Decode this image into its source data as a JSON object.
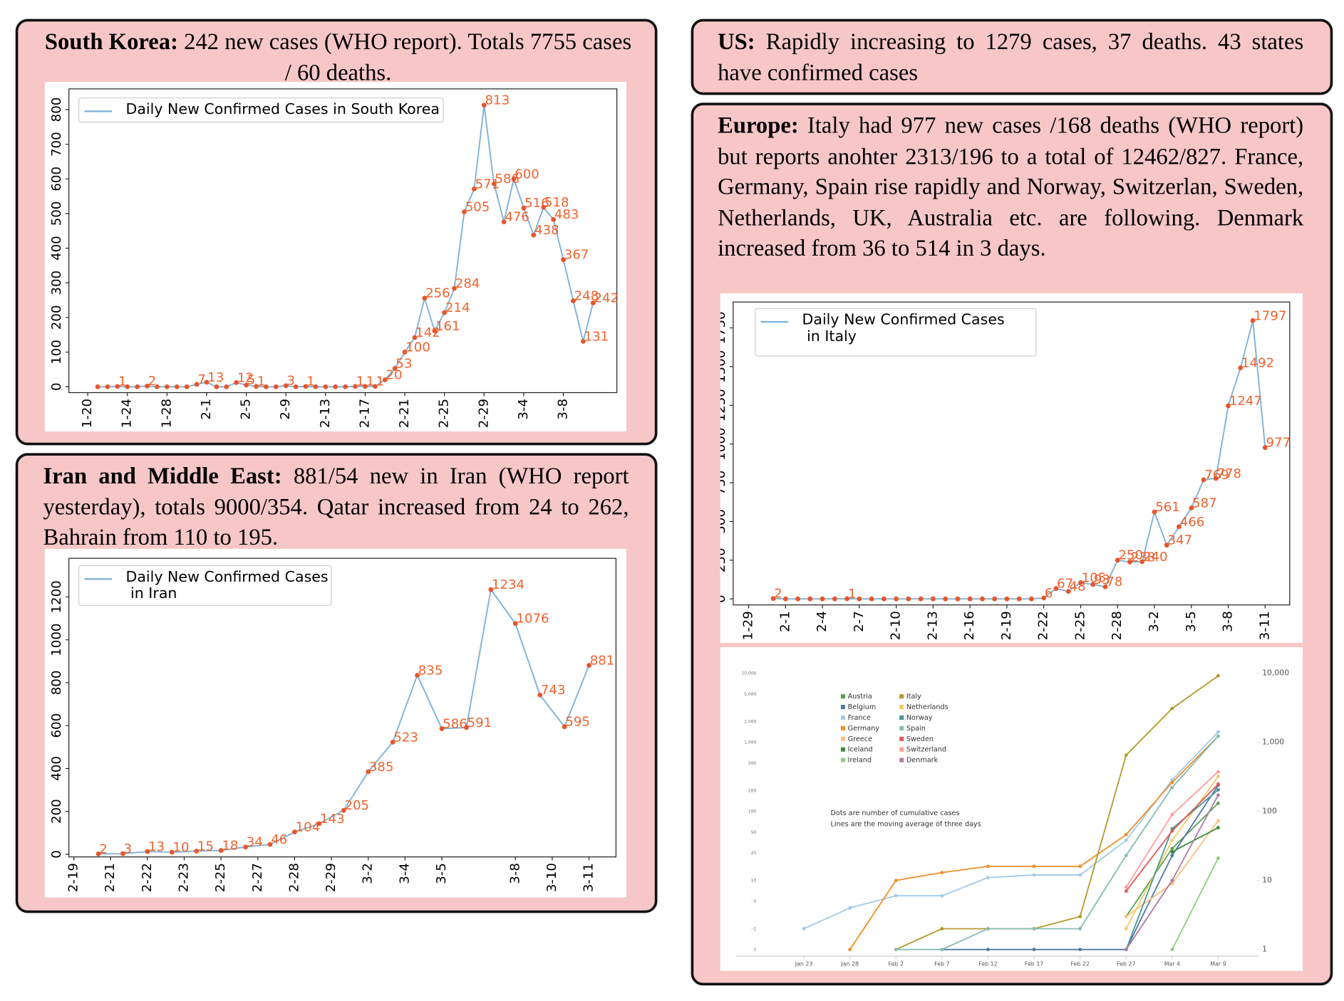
{
  "panels": [
    {
      "heading": "South Korea:",
      "text": "242 new cases (WHO report). Totals 7755 cases / 60 deaths.",
      "chart_data": {
        "type": "line",
        "legend": "Daily New Confirmed Cases in South Korea",
        "categories": [
          "1-20",
          null,
          null,
          null,
          "1-24",
          null,
          null,
          null,
          "1-28",
          null,
          null,
          null,
          "2-1",
          null,
          null,
          null,
          "2-5",
          null,
          null,
          null,
          "2-9",
          null,
          null,
          null,
          "2-13",
          null,
          null,
          null,
          "2-17",
          null,
          null,
          null,
          "2-21",
          null,
          null,
          null,
          "2-25",
          null,
          null,
          null,
          "2-29",
          null,
          null,
          null,
          "3-4",
          null,
          null,
          null,
          "3-8",
          null,
          null,
          null
        ],
        "values": [
          null,
          0,
          0,
          1,
          0,
          0,
          2,
          0,
          0,
          0,
          0,
          7,
          13,
          0,
          0,
          12,
          5,
          1,
          0,
          0,
          3,
          0,
          1,
          0,
          0,
          0,
          0,
          1,
          1,
          1,
          20,
          53,
          100,
          142,
          256,
          161,
          214,
          284,
          505,
          571,
          813,
          586,
          476,
          600,
          516,
          438,
          518,
          483,
          367,
          248,
          131,
          242
        ],
        "line_color": "#82b3d8",
        "marker_color": "#e8552a",
        "label_color": "#f0622d",
        "ylim": [
          -17,
          860
        ],
        "yticks": [
          0,
          100,
          200,
          300,
          400,
          500,
          600,
          700,
          800
        ]
      }
    },
    {
      "heading": "US:",
      "text": "Rapidly increasing to 1279 cases, 37 deaths. 43 states have confirmed cases"
    },
    {
      "heading": "Iran and Middle East:",
      "text": "881/54 new in Iran (WHO report yesterday), totals 9000/354. Qatar increased from 24 to 262, Bahrain from 110 to 195.",
      "chart_data": {
        "type": "line",
        "legend": "Daily New Confirmed Cases\n in Iran",
        "values": [
          2,
          3,
          13,
          10,
          15,
          18,
          34,
          46,
          104,
          143,
          205,
          385,
          523,
          835,
          586,
          591,
          1234,
          1076,
          743,
          595,
          881
        ],
        "xlim": [
          -1.2,
          21.1
        ],
        "xticks": [
          {
            "value": -1,
            "label": "2-19"
          },
          {
            "value": 0.5,
            "label": "2-21"
          },
          {
            "value": 2,
            "label": "2-22"
          },
          {
            "value": 3.5,
            "label": "2-23"
          },
          {
            "value": 5,
            "label": "2-25"
          },
          {
            "value": 6.5,
            "label": "2-27"
          },
          {
            "value": 8,
            "label": "2-28"
          },
          {
            "value": 9.5,
            "label": "2-29"
          },
          {
            "value": 11,
            "label": "3-2"
          },
          {
            "value": 12.5,
            "label": "3-4"
          },
          {
            "value": 14,
            "label": "3-5"
          },
          {
            "value": 17,
            "label": "3-8"
          },
          {
            "value": 18.5,
            "label": "3-10"
          },
          {
            "value": 20,
            "label": "3-11"
          }
        ],
        "line_color": "#82b3d8",
        "marker_color": "#e8552a",
        "label_color": "#f0622d",
        "ylim": [
          -12,
          1380
        ],
        "yticks": [
          0,
          200,
          400,
          600,
          800,
          1000,
          1200
        ]
      }
    },
    {
      "heading": "Europe:",
      "text": "Italy had 977 new cases /168 deaths (WHO report) but reports anohter 2313/196 to a total of 12462/827. France, Germany, Spain rise rapidly and Norway, Switzerlan, Sweden, Netherlands, UK, Australia etc. are following. Denmark increased from 36 to 514 in 3 days.",
      "chart_data": [
        {
          "type": "line",
          "legend": "Daily New Confirmed Cases\n in Italy",
          "categories": [
            "1-29",
            null,
            null,
            "2-1",
            null,
            null,
            "2-4",
            null,
            null,
            "2-7",
            null,
            null,
            "2-10",
            null,
            null,
            "2-13",
            null,
            null,
            "2-16",
            null,
            null,
            "2-19",
            null,
            null,
            "2-22",
            null,
            null,
            "2-25",
            null,
            null,
            "2-28",
            null,
            null,
            "3-2",
            null,
            null,
            "3-5",
            null,
            null,
            "3-8",
            null,
            null,
            "3-11"
          ],
          "values": [
            null,
            null,
            2,
            0,
            0,
            0,
            0,
            0,
            1,
            0,
            0,
            0,
            0,
            0,
            0,
            0,
            0,
            0,
            0,
            0,
            0,
            0,
            0,
            0,
            6,
            67,
            48,
            105,
            93,
            78,
            250,
            238,
            240,
            561,
            347,
            466,
            587,
            769,
            778,
            1247,
            1492,
            1797,
            977
          ],
          "line_color": "#82b3d8",
          "marker_color": "#e8552a",
          "label_color": "#f0622d",
          "ylim": [
            -39,
            1917
          ],
          "yticks": [
            0,
            250,
            500,
            750,
            1000,
            1250,
            1500,
            1750
          ]
        },
        {
          "type": "log-line",
          "log_scale": true,
          "categories": [
            "Jan 23",
            "Jan 28",
            "Feb 2",
            "Feb 7",
            "Feb 12",
            "Feb 17",
            "Feb 22",
            "Feb 27",
            "Mar 4",
            "Mar 9"
          ],
          "series": [
            {
              "name": "Austria",
              "color": "#59a14f",
              "values": [
                null,
                null,
                null,
                null,
                null,
                null,
                null,
                3,
                29,
                131
              ]
            },
            {
              "name": "Belgium",
              "color": "#4e79a7",
              "values": [
                null,
                null,
                null,
                1,
                1,
                1,
                1,
                1,
                23,
                239
              ]
            },
            {
              "name": "France",
              "color": "#a0cbe8",
              "values": [
                2,
                4,
                6,
                6,
                11,
                12,
                12,
                38,
                285,
                1412
              ]
            },
            {
              "name": "Germany",
              "color": "#f28e2b",
              "values": [
                null,
                1,
                10,
                13,
                16,
                16,
                16,
                46,
                262,
                1224
              ]
            },
            {
              "name": "Greece",
              "color": "#ffbe7d",
              "values": [
                null,
                null,
                null,
                null,
                null,
                null,
                null,
                3,
                9,
                73
              ]
            },
            {
              "name": "Iceland",
              "color": "#3c8c3c",
              "values": [
                null,
                null,
                null,
                null,
                null,
                null,
                null,
                null,
                26,
                58
              ]
            },
            {
              "name": "Ireland",
              "color": "#8cd17d",
              "values": [
                null,
                null,
                null,
                null,
                null,
                null,
                null,
                null,
                1,
                21
              ]
            },
            {
              "name": "Italy",
              "color": "#b6992d",
              "values": [
                null,
                null,
                1,
                2,
                2,
                2,
                3,
                650,
                3089,
                9172
              ]
            },
            {
              "name": "Netherlands",
              "color": "#f1ce63",
              "values": [
                null,
                null,
                null,
                null,
                null,
                null,
                null,
                2,
                38,
                321
              ]
            },
            {
              "name": "Norway",
              "color": "#499894",
              "values": [
                null,
                null,
                null,
                null,
                null,
                null,
                null,
                1,
                56,
                205
              ]
            },
            {
              "name": "Spain",
              "color": "#86bcb6",
              "values": [
                null,
                null,
                1,
                1,
                2,
                2,
                2,
                23,
                222,
                1231
              ]
            },
            {
              "name": "Sweden",
              "color": "#e15759",
              "values": [
                null,
                null,
                null,
                null,
                null,
                null,
                null,
                7,
                52,
                248
              ]
            },
            {
              "name": "Switzerland",
              "color": "#ff9d9a",
              "values": [
                null,
                null,
                null,
                null,
                null,
                null,
                null,
                8,
                90,
                374
              ]
            },
            {
              "name": "Denmark",
              "color": "#b07aa1",
              "values": [
                null,
                null,
                null,
                null,
                null,
                null,
                null,
                1,
                10,
                172
              ]
            }
          ],
          "annotation": [
            "Dots are number of cumulative cases",
            "Lines are the moving average of three days"
          ],
          "ylim": [
            0.9,
            13000
          ],
          "yticks": [
            {
              "value": 10000,
              "label": "10,000"
            },
            {
              "value": 5000,
              "label": "5,000"
            },
            {
              "value": 2000,
              "label": "2,000"
            },
            {
              "value": 1000,
              "label": "1,000"
            },
            500,
            200,
            100,
            50,
            25,
            10,
            5,
            2,
            1
          ],
          "y2lim": [
            0.9,
            13000
          ],
          "y2ticks": [
            {
              "value": 10000,
              "label": "10,000"
            },
            {
              "value": 1000,
              "label": "1,000"
            },
            100,
            10,
            1
          ]
        }
      ]
    }
  ]
}
